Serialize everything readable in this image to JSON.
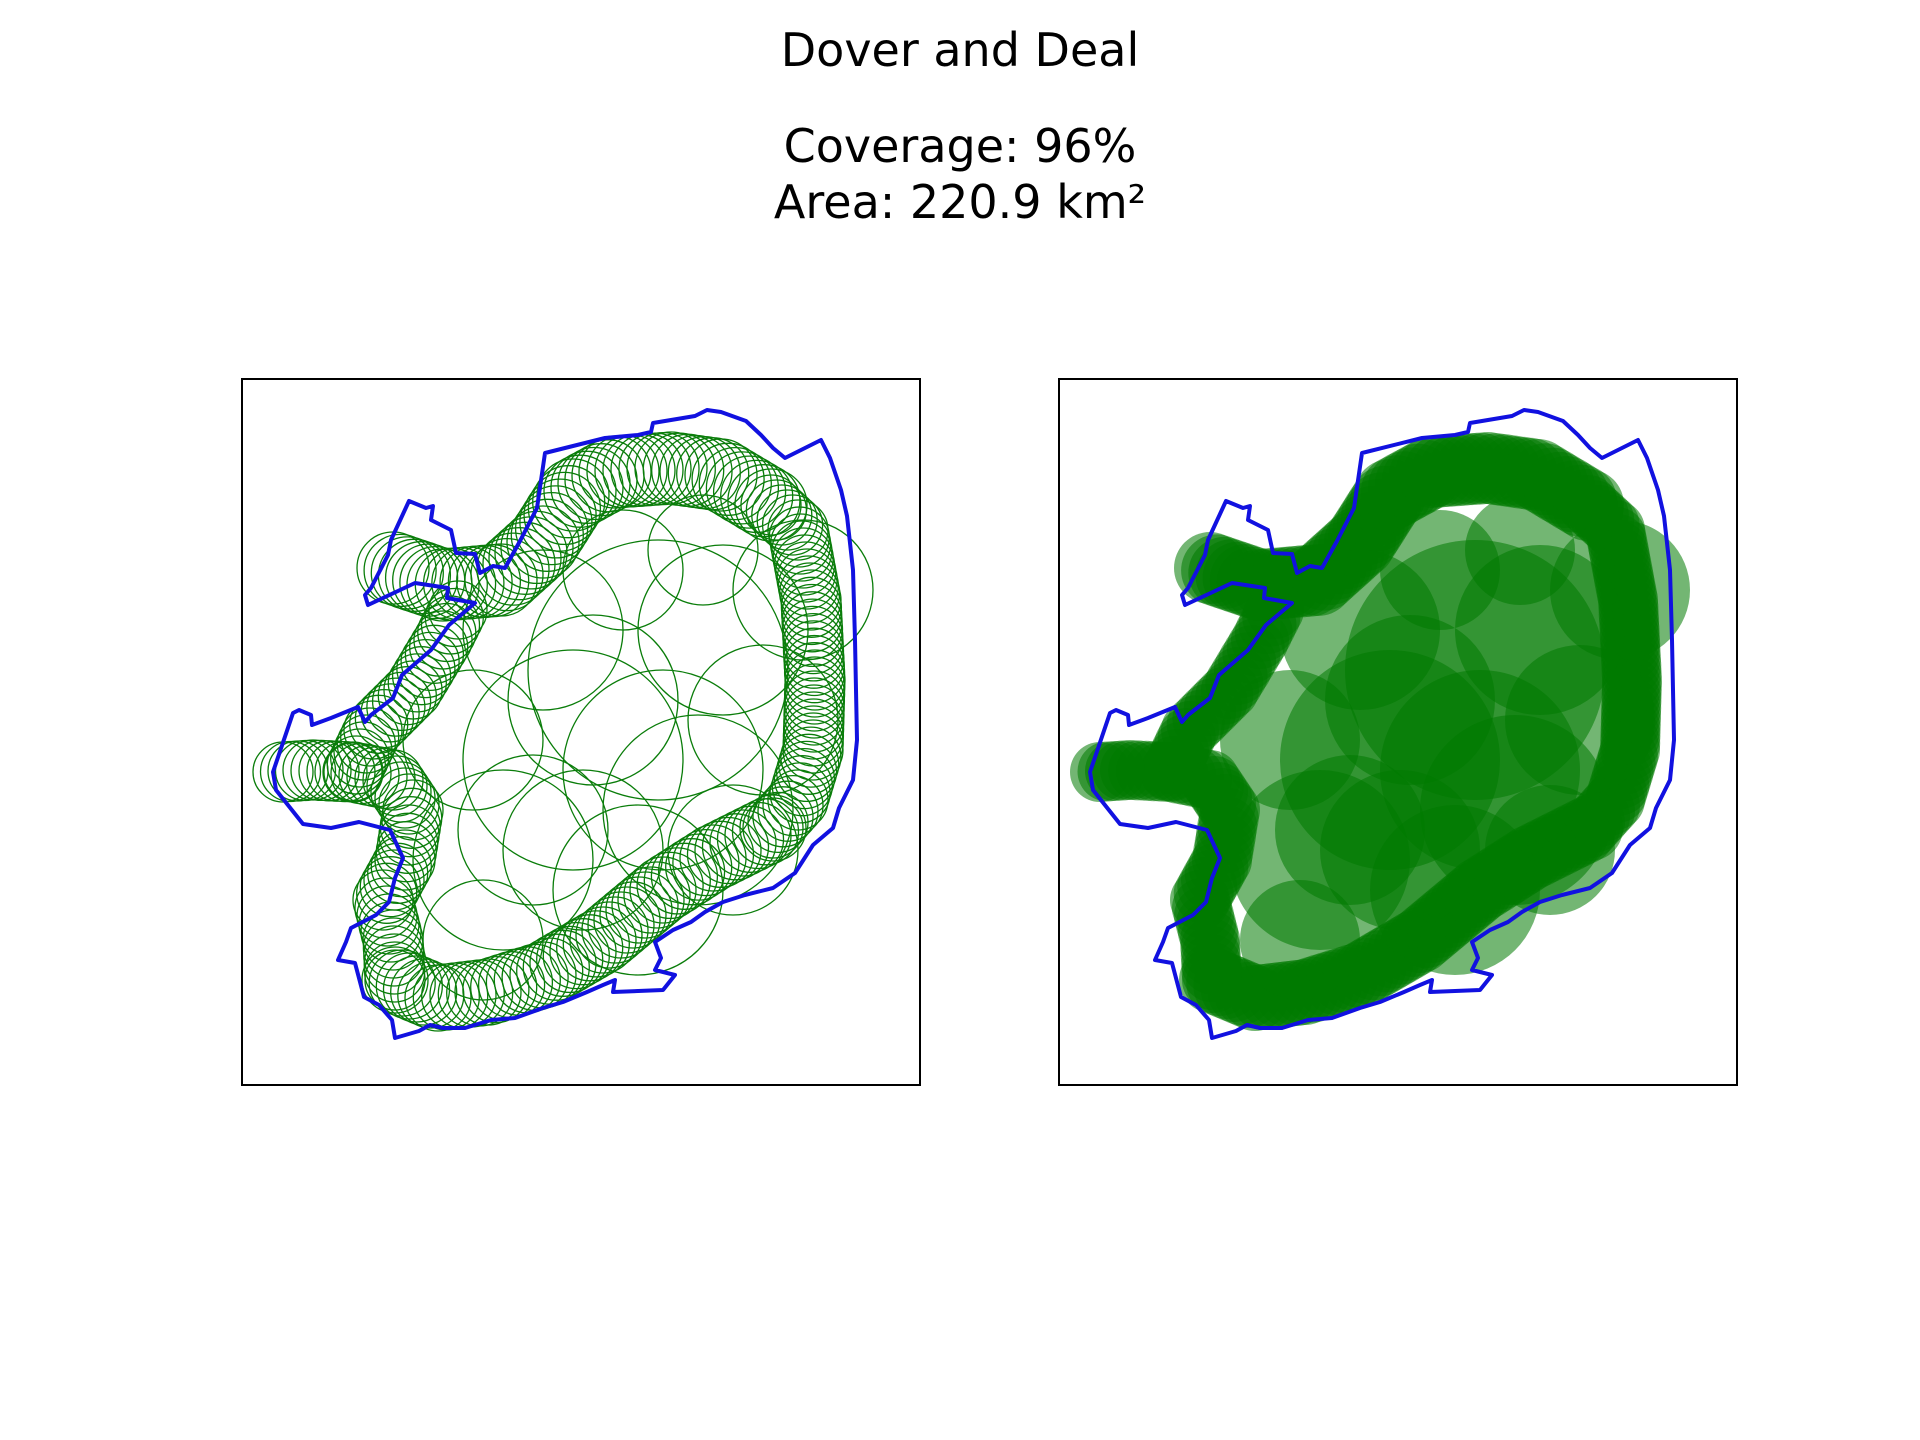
{
  "figure": {
    "title": "Dover and Deal",
    "coverage_text": "Coverage: 96%",
    "area_text": "Area: 220.9 km²",
    "coverage_percent": 96,
    "area_km2": 220.9
  },
  "colors": {
    "boundary": "#1111e0",
    "circle": "#0a7d0a",
    "fill": "#007a00",
    "frame": "#000000",
    "background": "#ffffff"
  },
  "panels": [
    {
      "id": "outline-view",
      "circle_style": "outline"
    },
    {
      "id": "filled-view",
      "circle_style": "filled"
    }
  ]
}
